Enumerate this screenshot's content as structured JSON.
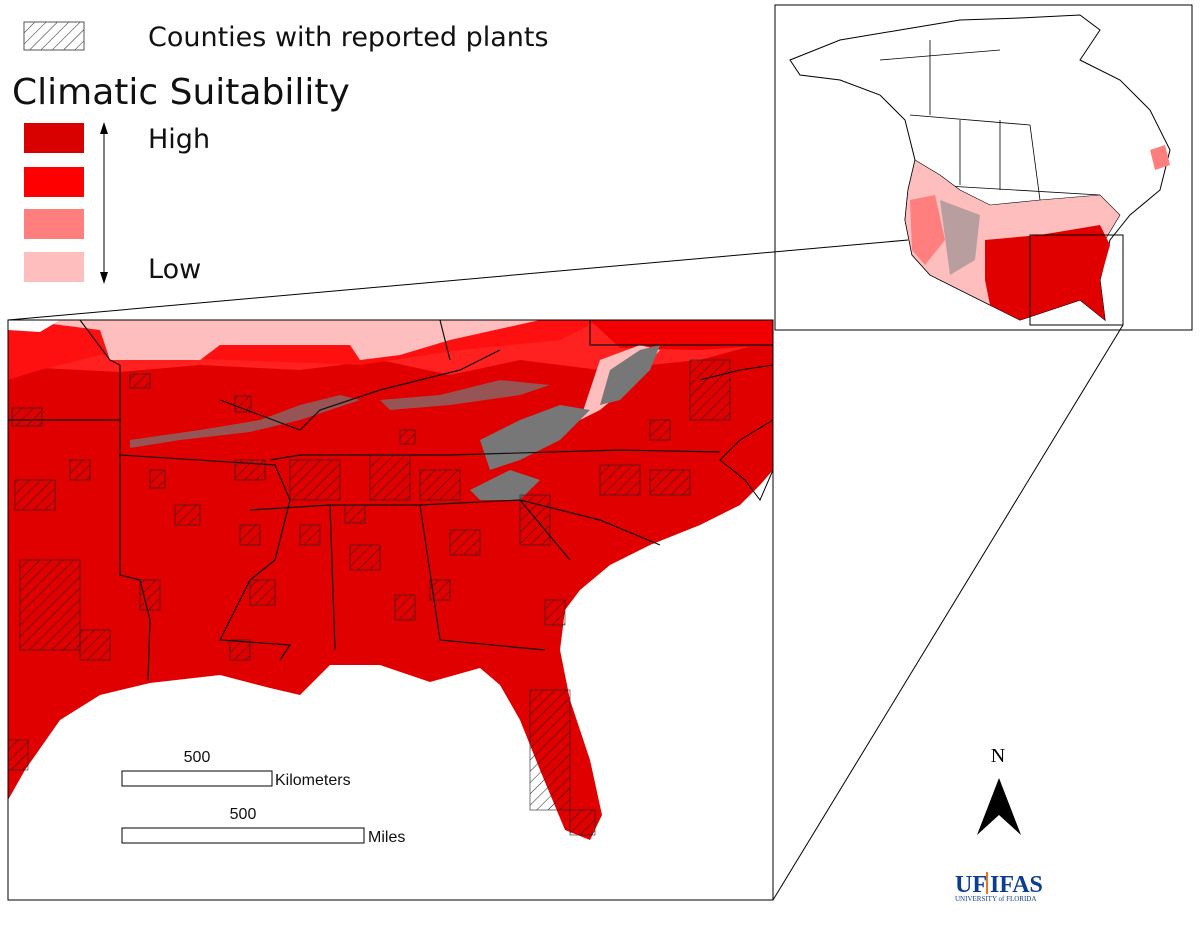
{
  "legend": {
    "hatch_label": "Counties with reported plants",
    "title": "Climatic Suitability",
    "high": "High",
    "low": "Low"
  },
  "scale_bars": [
    {
      "value_label": "500",
      "unit": "Kilometers"
    },
    {
      "value_label": "500",
      "unit": "Miles"
    }
  ],
  "north_arrow": "N",
  "logo": {
    "uf": "UF",
    "ifas": "IFAS",
    "university": "UNIVERSITY of FLORIDA"
  }
}
